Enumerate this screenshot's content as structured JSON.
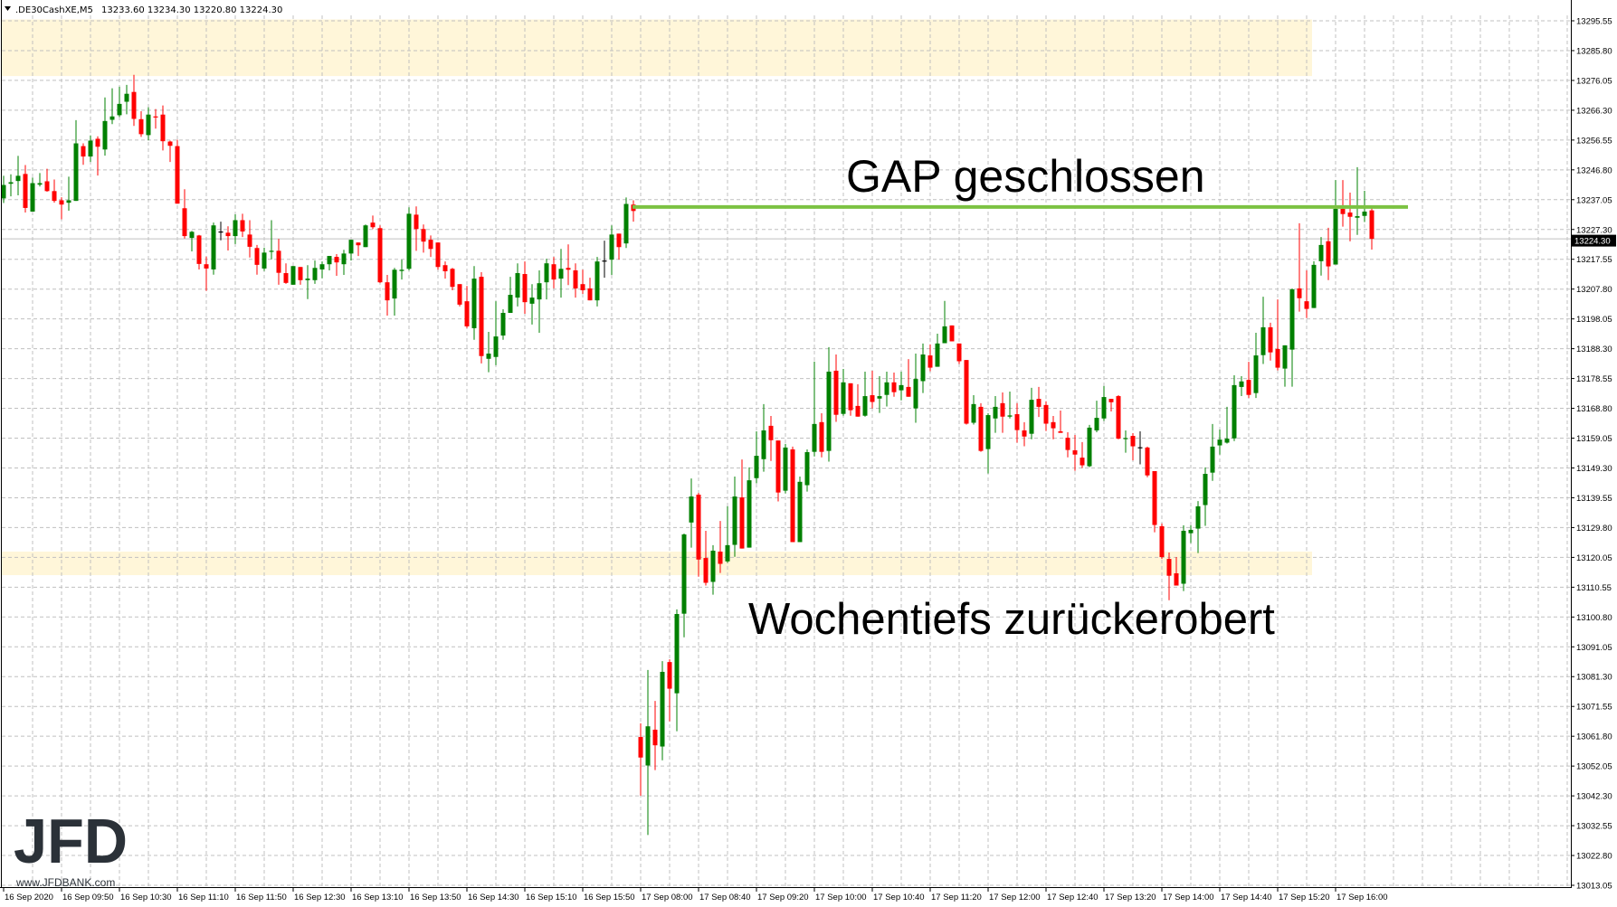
{
  "header": {
    "symbol": ".DE30CashXE,M5",
    "ohlc": "13233.60 13234.30 13220.80 13224.30",
    "menu_icon": "triangle-down-icon"
  },
  "annotations": {
    "gap": "GAP geschlossen",
    "lows": "Wochentiefs zurückerobert"
  },
  "logo": {
    "text": "JFD",
    "url": "www.JFDBANK.com"
  },
  "colors": {
    "bull": "#008000",
    "bear": "#ff0000",
    "doji": "#000000",
    "zone": "#fff6d9",
    "gap_line": "#7cc242",
    "grid": "#c0c0c0",
    "price_box": "#000000"
  },
  "chart_data": {
    "type": "candlestick",
    "timeframe": "M5",
    "ylim": [
      13013.05,
      13295.55
    ],
    "grid": true,
    "current_price": "13224.30",
    "y_tick_labels": [
      "13295.55",
      "13285.80",
      "13276.05",
      "13266.30",
      "13256.55",
      "13246.80",
      "13237.05",
      "13227.30",
      "13217.55",
      "13207.80",
      "13198.05",
      "13188.30",
      "13178.55",
      "13168.80",
      "13159.05",
      "13149.30",
      "13139.55",
      "13129.80",
      "13120.05",
      "13110.55",
      "13100.80",
      "13091.05",
      "13081.30",
      "13071.55",
      "13061.80",
      "13052.05",
      "13042.30",
      "13032.55",
      "13022.80",
      "13013.05"
    ],
    "x_tick_labels": [
      "16 Sep 2020",
      "16 Sep 09:50",
      "16 Sep 10:30",
      "16 Sep 11:10",
      "16 Sep 11:50",
      "16 Sep 12:30",
      "16 Sep 13:10",
      "16 Sep 13:50",
      "16 Sep 14:30",
      "16 Sep 15:10",
      "16 Sep 15:50",
      "17 Sep 08:00",
      "17 Sep 08:40",
      "17 Sep 09:20",
      "17 Sep 10:00",
      "17 Sep 10:40",
      "17 Sep 11:20",
      "17 Sep 12:00",
      "17 Sep 12:40",
      "17 Sep 13:20",
      "17 Sep 14:00",
      "17 Sep 14:40",
      "17 Sep 15:20",
      "17 Sep 16:00"
    ],
    "zones": [
      {
        "from": 13277.5,
        "to": 13296.0
      },
      {
        "from": 13114.4,
        "to": 13122.1
      }
    ],
    "gap_level": 13234.7,
    "ohlc_fields": [
      "open",
      "high",
      "low",
      "close"
    ],
    "candles": [
      [
        13237.5,
        13244.9,
        13236.0,
        13241.9
      ],
      [
        13242.3,
        13245.4,
        13238.2,
        13242.8
      ],
      [
        13243.2,
        13251.4,
        13238.5,
        13244.9
      ],
      [
        13245.5,
        13248.4,
        13232.9,
        13234.4
      ],
      [
        13233.2,
        13244.3,
        13233.2,
        13242.5
      ],
      [
        13242.0,
        13245.8,
        13241.4,
        13242.5
      ],
      [
        13243.1,
        13247.2,
        13239.7,
        13239.9
      ],
      [
        13239.9,
        13243.7,
        13236.1,
        13236.7
      ],
      [
        13236.9,
        13237.9,
        13230.7,
        13235.5
      ],
      [
        13236.1,
        13244.6,
        13233.5,
        13236.9
      ],
      [
        13236.7,
        13263.1,
        13236.7,
        13255.5
      ],
      [
        13254.6,
        13255.5,
        13248.5,
        13251.2
      ],
      [
        13251.2,
        13258.1,
        13249.4,
        13256.4
      ],
      [
        13257.0,
        13257.8,
        13245.0,
        13254.4
      ],
      [
        13253.5,
        13270.5,
        13251.5,
        13262.8
      ],
      [
        13263.2,
        13273.5,
        13261.8,
        13264.3
      ],
      [
        13264.7,
        13274.0,
        13264.1,
        13268.4
      ],
      [
        13269.1,
        13274.6,
        13265.0,
        13271.7
      ],
      [
        13272.3,
        13277.9,
        13261.2,
        13263.5
      ],
      [
        13263.4,
        13266.0,
        13257.6,
        13258.5
      ],
      [
        13258.2,
        13267.3,
        13256.5,
        13264.9
      ],
      [
        13264.3,
        13266.7,
        13260.3,
        13264.1
      ],
      [
        13264.9,
        13267.9,
        13253.2,
        13256.2
      ],
      [
        13256.1,
        13256.4,
        13249.4,
        13254.7
      ],
      [
        13254.6,
        13256.7,
        13235.8,
        13235.8
      ],
      [
        13234.3,
        13240.5,
        13224.4,
        13225.2
      ],
      [
        13224.6,
        13226.9,
        13220.2,
        13226.6
      ],
      [
        13225.4,
        13225.6,
        13214.3,
        13216.1
      ],
      [
        13216.0,
        13218.5,
        13207.3,
        13214.6
      ],
      [
        13214.3,
        13229.6,
        13212.6,
        13228.7
      ],
      [
        13226.7,
        13229.9,
        13223.8,
        13226.7
      ],
      [
        13226.3,
        13228.4,
        13220.5,
        13225.2
      ],
      [
        13225.2,
        13232.3,
        13222.6,
        13230.4
      ],
      [
        13230.4,
        13232.5,
        13224.9,
        13226.7
      ],
      [
        13225.7,
        13230.4,
        13218.2,
        13221.7
      ],
      [
        13221.3,
        13222.3,
        13212.6,
        13215.8
      ],
      [
        13214.6,
        13221.4,
        13213.8,
        13219.8
      ],
      [
        13220.2,
        13230.4,
        13217.6,
        13220.4
      ],
      [
        13220.4,
        13224.3,
        13209.3,
        13213.2
      ],
      [
        13213.1,
        13216.3,
        13209.6,
        13209.9
      ],
      [
        13209.3,
        13215.4,
        13209.3,
        13215.4
      ],
      [
        13215.1,
        13215.1,
        13209.3,
        13210.8
      ],
      [
        13210.8,
        13215.7,
        13204.6,
        13211.3
      ],
      [
        13210.8,
        13217.2,
        13209.6,
        13214.8
      ],
      [
        13214.3,
        13216.9,
        13211.4,
        13216.0
      ],
      [
        13216.0,
        13218.7,
        13214.0,
        13218.7
      ],
      [
        13218.4,
        13219.3,
        13212.2,
        13216.6
      ],
      [
        13216.0,
        13220.7,
        13212.5,
        13219.5
      ],
      [
        13219.5,
        13224.0,
        13217.2,
        13224.0
      ],
      [
        13223.1,
        13223.1,
        13218.7,
        13222.2
      ],
      [
        13221.6,
        13229.0,
        13221.6,
        13228.7
      ],
      [
        13229.6,
        13231.9,
        13227.5,
        13228.1
      ],
      [
        13227.8,
        13228.7,
        13209.8,
        13210.1
      ],
      [
        13210.1,
        13212.5,
        13199.2,
        13204.2
      ],
      [
        13204.8,
        13214.8,
        13199.2,
        13214.2
      ],
      [
        13213.8,
        13217.5,
        13211.0,
        13214.2
      ],
      [
        13214.5,
        13234.6,
        13214.0,
        13232.5
      ],
      [
        13232.2,
        13234.9,
        13220.4,
        13227.5
      ],
      [
        13227.5,
        13229.0,
        13219.8,
        13223.4
      ],
      [
        13224.0,
        13225.4,
        13218.4,
        13221.0
      ],
      [
        13223.1,
        13223.1,
        13214.2,
        13215.1
      ],
      [
        13215.7,
        13216.9,
        13211.3,
        13213.7
      ],
      [
        13214.5,
        13214.8,
        13207.5,
        13208.6
      ],
      [
        13209.5,
        13209.5,
        13202.2,
        13202.8
      ],
      [
        13203.9,
        13208.9,
        13195.1,
        13195.7
      ],
      [
        13195.1,
        13215.4,
        13191.3,
        13211.3
      ],
      [
        13211.9,
        13213.4,
        13183.6,
        13186.0
      ],
      [
        13185.1,
        13193.9,
        13180.7,
        13186.8
      ],
      [
        13185.7,
        13203.9,
        13183.0,
        13192.4
      ],
      [
        13192.7,
        13201.3,
        13191.3,
        13200.1
      ],
      [
        13200.1,
        13211.9,
        13200.1,
        13206.0
      ],
      [
        13205.1,
        13216.3,
        13202.2,
        13213.1
      ],
      [
        13212.8,
        13216.9,
        13199.8,
        13203.6
      ],
      [
        13203.1,
        13209.5,
        13196.3,
        13205.1
      ],
      [
        13204.5,
        13214.0,
        13193.6,
        13209.8
      ],
      [
        13210.1,
        13217.8,
        13204.5,
        13216.3
      ],
      [
        13216.0,
        13218.4,
        13208.1,
        13211.0
      ],
      [
        13211.3,
        13221.0,
        13205.1,
        13214.5
      ],
      [
        13214.8,
        13222.5,
        13209.2,
        13214.2
      ],
      [
        13214.0,
        13216.3,
        13205.1,
        13208.1
      ],
      [
        13209.5,
        13214.2,
        13206.3,
        13207.5
      ],
      [
        13208.1,
        13211.6,
        13204.2,
        13204.2
      ],
      [
        13204.2,
        13218.4,
        13202.2,
        13216.9
      ],
      [
        13217.2,
        13223.7,
        13211.6,
        13217.2
      ],
      [
        13217.5,
        13228.7,
        13212.5,
        13225.7
      ],
      [
        13226.0,
        13226.0,
        13217.5,
        13221.6
      ],
      [
        13222.8,
        13237.8,
        13221.3,
        13235.7
      ],
      [
        13235.5,
        13236.9,
        13229.9,
        13233.4
      ],
      [
        13061.5,
        13066.0,
        13042.3,
        13054.8
      ],
      [
        13052.2,
        13083.4,
        13029.5,
        13065.0
      ],
      [
        13063.9,
        13073.3,
        13050.7,
        13058.8
      ],
      [
        13058.4,
        13086.3,
        13053.9,
        13082.8
      ],
      [
        13086.0,
        13086.9,
        13066.6,
        13077.3
      ],
      [
        13075.8,
        13103.2,
        13063.4,
        13101.7
      ],
      [
        13101.8,
        13128.0,
        13094.1,
        13127.7
      ],
      [
        13131.6,
        13146.0,
        13123.4,
        13140.1
      ],
      [
        13140.7,
        13141.3,
        13113.9,
        13119.5
      ],
      [
        13120.0,
        13128.9,
        13111.0,
        13111.9
      ],
      [
        13112.2,
        13124.2,
        13108.0,
        13122.4
      ],
      [
        13122.1,
        13132.1,
        13115.1,
        13118.1
      ],
      [
        13118.9,
        13136.9,
        13118.4,
        13124.2
      ],
      [
        13124.3,
        13146.6,
        13120.4,
        13140.1
      ],
      [
        13139.8,
        13152.2,
        13123.1,
        13123.1
      ],
      [
        13123.4,
        13149.6,
        13123.4,
        13145.4
      ],
      [
        13146.1,
        13161.4,
        13144.4,
        13153.4
      ],
      [
        13152.3,
        13170.3,
        13148.2,
        13161.7
      ],
      [
        13163.2,
        13166.4,
        13151.7,
        13158.5
      ],
      [
        13158.4,
        13158.4,
        13138.5,
        13141.4
      ],
      [
        13142.0,
        13157.3,
        13141.1,
        13156.1
      ],
      [
        13155.5,
        13156.4,
        13125.2,
        13125.2
      ],
      [
        13125.2,
        13146.6,
        13125.2,
        13144.9
      ],
      [
        13143.8,
        13155.5,
        13141.7,
        13154.6
      ],
      [
        13154.7,
        13184.2,
        13153.2,
        13163.8
      ],
      [
        13164.4,
        13167.3,
        13152.9,
        13154.7
      ],
      [
        13155.0,
        13188.9,
        13151.5,
        13180.9
      ],
      [
        13181.2,
        13186.5,
        13164.5,
        13166.8
      ],
      [
        13167.1,
        13181.8,
        13166.5,
        13177.4
      ],
      [
        13177.1,
        13177.1,
        13166.5,
        13168.3
      ],
      [
        13169.7,
        13176.8,
        13166.2,
        13166.2
      ],
      [
        13166.5,
        13180.9,
        13166.2,
        13172.9
      ],
      [
        13173.2,
        13181.2,
        13168.9,
        13171.0
      ],
      [
        13172.1,
        13179.4,
        13167.4,
        13172.9
      ],
      [
        13173.3,
        13180.9,
        13169.5,
        13177.4
      ],
      [
        13177.4,
        13180.6,
        13172.7,
        13174.2
      ],
      [
        13174.8,
        13180.9,
        13171.5,
        13176.5
      ],
      [
        13175.9,
        13185.0,
        13172.7,
        13172.7
      ],
      [
        13168.9,
        13186.8,
        13164.2,
        13178.5
      ],
      [
        13177.8,
        13190.1,
        13173.9,
        13186.5
      ],
      [
        13186.2,
        13189.8,
        13181.0,
        13182.2
      ],
      [
        13182.5,
        13193.3,
        13182.5,
        13190.1
      ],
      [
        13190.2,
        13204.0,
        13190.2,
        13195.7
      ],
      [
        13196.0,
        13196.0,
        13190.8,
        13190.8
      ],
      [
        13190.1,
        13190.1,
        13183.4,
        13184.3
      ],
      [
        13184.7,
        13184.7,
        13163.6,
        13163.9
      ],
      [
        13164.2,
        13173.2,
        13163.6,
        13170.3
      ],
      [
        13169.4,
        13170.6,
        13154.7,
        13155.0
      ],
      [
        13155.6,
        13167.3,
        13147.6,
        13166.7
      ],
      [
        13165.6,
        13172.9,
        13160.9,
        13169.4
      ],
      [
        13170.6,
        13174.1,
        13160.9,
        13166.2
      ],
      [
        13166.2,
        13174.4,
        13165.6,
        13166.6
      ],
      [
        13167.0,
        13170.6,
        13157.7,
        13161.8
      ],
      [
        13161.7,
        13164.4,
        13156.5,
        13159.7
      ],
      [
        13160.6,
        13175.6,
        13158.8,
        13171.7
      ],
      [
        13172.0,
        13175.9,
        13166.1,
        13169.4
      ],
      [
        13170.0,
        13171.2,
        13161.5,
        13163.9
      ],
      [
        13164.4,
        13166.4,
        13158.8,
        13162.4
      ],
      [
        13161.4,
        13168.2,
        13160.9,
        13160.9
      ],
      [
        13159.3,
        13161.1,
        13152.9,
        13155.3
      ],
      [
        13155.2,
        13160.2,
        13148.5,
        13153.8
      ],
      [
        13152.8,
        13157.9,
        13149.4,
        13150.3
      ],
      [
        13150.0,
        13163.5,
        13149.7,
        13162.6
      ],
      [
        13161.7,
        13171.4,
        13161.1,
        13165.8
      ],
      [
        13165.6,
        13176.2,
        13164.8,
        13172.6
      ],
      [
        13172.0,
        13172.0,
        13167.9,
        13170.9
      ],
      [
        13172.9,
        13173.2,
        13158.8,
        13159.0
      ],
      [
        13159.1,
        13161.7,
        13154.4,
        13159.2
      ],
      [
        13159.9,
        13160.8,
        13151.9,
        13156.5
      ],
      [
        13156.2,
        13161.4,
        13150.6,
        13156.2
      ],
      [
        13156.1,
        13156.4,
        13146.4,
        13147.0
      ],
      [
        13148.4,
        13148.4,
        13128.4,
        13130.8
      ],
      [
        13130.4,
        13131.3,
        13119.7,
        13120.3
      ],
      [
        13119.7,
        13121.8,
        13106.2,
        13114.2
      ],
      [
        13115.0,
        13120.3,
        13111.0,
        13111.0
      ],
      [
        13111.6,
        13130.7,
        13109.2,
        13128.9
      ],
      [
        13128.1,
        13130.7,
        13124.9,
        13129.2
      ],
      [
        13129.6,
        13138.6,
        13121.6,
        13136.9
      ],
      [
        13137.3,
        13149.6,
        13130.5,
        13147.5
      ],
      [
        13147.9,
        13163.8,
        13145.2,
        13156.4
      ],
      [
        13156.8,
        13162.0,
        13153.8,
        13158.7
      ],
      [
        13157.7,
        13169.4,
        13157.4,
        13159.0
      ],
      [
        13159.1,
        13179.7,
        13158.2,
        13176.5
      ],
      [
        13175.9,
        13179.4,
        13172.9,
        13177.7
      ],
      [
        13178.2,
        13184.1,
        13172.3,
        13173.3
      ],
      [
        13173.9,
        13193.6,
        13172.3,
        13186.2
      ],
      [
        13186.3,
        13205.4,
        13183.4,
        13195.4
      ],
      [
        13195.4,
        13196.9,
        13184.5,
        13187.2
      ],
      [
        13188.3,
        13204.5,
        13181.3,
        13182.2
      ],
      [
        13181.9,
        13189.5,
        13176.0,
        13189.5
      ],
      [
        13188.1,
        13208.1,
        13176.0,
        13207.8
      ],
      [
        13208.1,
        13229.4,
        13200.5,
        13204.9
      ],
      [
        13203.9,
        13214.0,
        13198.4,
        13201.4
      ],
      [
        13201.7,
        13217.0,
        13201.7,
        13215.8
      ],
      [
        13217.0,
        13224.9,
        13212.3,
        13222.3
      ],
      [
        13223.5,
        13227.9,
        13210.8,
        13215.3
      ],
      [
        13215.9,
        13243.5,
        13215.9,
        13234.1
      ],
      [
        13234.1,
        13243.5,
        13228.3,
        13232.4
      ],
      [
        13232.9,
        13239.4,
        13223.5,
        13231.5
      ],
      [
        13231.2,
        13247.7,
        13225.6,
        13231.7
      ],
      [
        13231.8,
        13240.0,
        13229.8,
        13233.2
      ],
      [
        13233.6,
        13234.3,
        13220.8,
        13224.3
      ]
    ]
  }
}
